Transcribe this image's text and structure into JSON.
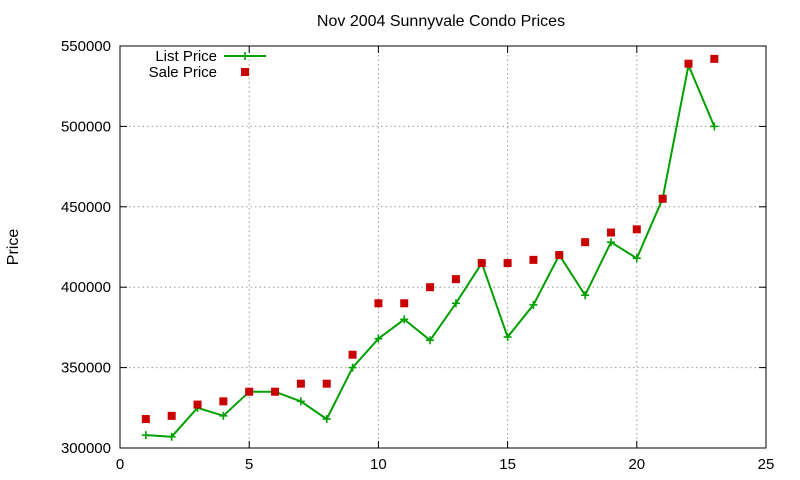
{
  "colors": {
    "list_price": "#00a000",
    "sale_price": "#c80000"
  },
  "chart_data": {
    "type": "line",
    "title": "Nov 2004 Sunnyvale Condo Prices",
    "xlabel": "",
    "ylabel": "Price",
    "xlim": [
      0,
      25
    ],
    "ylim": [
      300000,
      550000
    ],
    "x_ticks": [
      "0",
      "5",
      "10",
      "15",
      "20",
      "25"
    ],
    "y_ticks": [
      "300000",
      "350000",
      "400000",
      "450000",
      "500000",
      "550000"
    ],
    "grid": true,
    "legend_position": "top-left",
    "series": [
      {
        "name": "List Price",
        "style": "lines+crosses",
        "x": [
          1,
          2,
          3,
          4,
          5,
          6,
          7,
          8,
          9,
          10,
          11,
          12,
          13,
          14,
          15,
          16,
          17,
          18,
          19,
          20,
          21,
          22,
          23
        ],
        "values": [
          308000,
          307000,
          325000,
          320000,
          335000,
          335000,
          329000,
          318000,
          350000,
          368000,
          380000,
          367000,
          390000,
          415000,
          369000,
          389000,
          420000,
          395000,
          428000,
          418000,
          455000,
          538000,
          500000
        ]
      },
      {
        "name": "Sale Price",
        "style": "squares",
        "x": [
          1,
          2,
          3,
          4,
          5,
          6,
          7,
          8,
          9,
          10,
          11,
          12,
          13,
          14,
          15,
          16,
          17,
          18,
          19,
          20,
          21,
          22,
          23
        ],
        "values": [
          318000,
          320000,
          327000,
          329000,
          335000,
          335000,
          340000,
          340000,
          358000,
          390000,
          390000,
          400000,
          405000,
          415000,
          415000,
          417000,
          420000,
          428000,
          434000,
          436000,
          455000,
          539000,
          542000
        ]
      }
    ]
  }
}
